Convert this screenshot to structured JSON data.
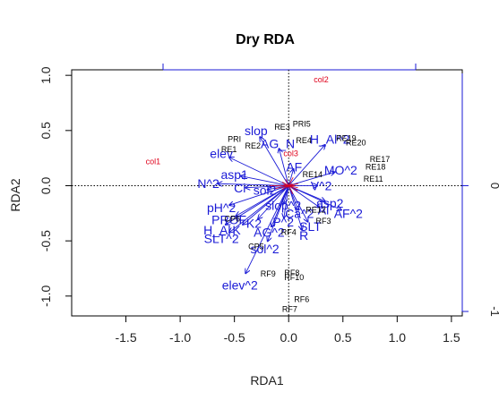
{
  "chart_data": {
    "type": "scatter",
    "title": "Dry RDA",
    "xlabel": "RDA1",
    "ylabel": "RDA2",
    "xlim": [
      -2.0,
      1.6
    ],
    "ylim": [
      -1.18,
      1.05
    ],
    "x_ticks": [
      -1.5,
      -1.0,
      -0.5,
      0.0,
      0.5,
      1.0,
      1.5
    ],
    "y_ticks": [
      1.0,
      0.5,
      0.0,
      -0.5,
      -1.0
    ],
    "x_tick_labels": [
      "-1.5",
      "-1.0",
      "-0.5",
      "0.0",
      "0.5",
      "1.0",
      "1.5"
    ],
    "y_tick_labels": [
      "1.0",
      "0.5",
      "0.0",
      "-0.5",
      "-1.0"
    ],
    "right_axis_tick_labels": [
      "0",
      "-1"
    ],
    "grid": false,
    "colors": {
      "sites": "#000000",
      "species": "#e0001b",
      "biplot": "#1a1ad6",
      "axes": "#000000"
    },
    "sites": [
      {
        "label": "PRI5",
        "x": 0.12,
        "y": 0.56
      },
      {
        "label": "RE3",
        "x": -0.06,
        "y": 0.53
      },
      {
        "label": "PRI",
        "x": -0.5,
        "y": 0.42
      },
      {
        "label": "RE2",
        "x": -0.33,
        "y": 0.36
      },
      {
        "label": "RE4",
        "x": 0.14,
        "y": 0.41
      },
      {
        "label": "RE1",
        "x": -0.55,
        "y": 0.33
      },
      {
        "label": "RE19",
        "x": 0.53,
        "y": 0.43
      },
      {
        "label": "RE20",
        "x": 0.62,
        "y": 0.39
      },
      {
        "label": "RE17",
        "x": 0.84,
        "y": 0.24
      },
      {
        "label": "RE18",
        "x": 0.8,
        "y": 0.17
      },
      {
        "label": "RE11",
        "x": 0.78,
        "y": 0.06
      },
      {
        "label": "RE14",
        "x": 0.22,
        "y": 0.1
      },
      {
        "label": "RE12",
        "x": 0.25,
        "y": -0.22
      },
      {
        "label": "RF3",
        "x": 0.32,
        "y": -0.32
      },
      {
        "label": "RF4",
        "x": 0.0,
        "y": -0.42
      },
      {
        "label": "CP6",
        "x": -0.52,
        "y": -0.3
      },
      {
        "label": "CP5",
        "x": -0.3,
        "y": -0.55
      },
      {
        "label": "RF9",
        "x": -0.19,
        "y": -0.8
      },
      {
        "label": "RF8",
        "x": 0.03,
        "y": -0.79
      },
      {
        "label": "RF10",
        "x": 0.05,
        "y": -0.83
      },
      {
        "label": "RF6",
        "x": 0.12,
        "y": -1.03
      },
      {
        "label": "RF7",
        "x": 0.01,
        "y": -1.12
      }
    ],
    "species": [
      {
        "label": "col2",
        "x": 0.3,
        "y": 0.96
      },
      {
        "label": "col1",
        "x": -1.25,
        "y": 0.22
      },
      {
        "label": "col3",
        "x": 0.02,
        "y": 0.29
      }
    ],
    "biplot": [
      {
        "label": "slop",
        "x": -0.3,
        "y": 0.5
      },
      {
        "label": "AG_N",
        "x": -0.1,
        "y": 0.38
      },
      {
        "label": "H_Al^2",
        "x": 0.38,
        "y": 0.42
      },
      {
        "label": "AF",
        "x": 0.05,
        "y": 0.17
      },
      {
        "label": "MO^2",
        "x": 0.48,
        "y": 0.14
      },
      {
        "label": "elev",
        "x": -0.62,
        "y": 0.29
      },
      {
        "label": "asp1",
        "x": -0.5,
        "y": 0.1
      },
      {
        "label": "N^2",
        "x": -0.74,
        "y": 0.02
      },
      {
        "label": "Ci",
        "x": -0.45,
        "y": -0.02
      },
      {
        "label": "sol2",
        "x": -0.22,
        "y": -0.04
      },
      {
        "label": "V^2",
        "x": 0.3,
        "y": 0.0
      },
      {
        "label": "slop^2",
        "x": -0.05,
        "y": -0.18
      },
      {
        "label": "asp2",
        "x": 0.38,
        "y": -0.16
      },
      {
        "label": "pH^2",
        "x": -0.62,
        "y": -0.2
      },
      {
        "label": "Al",
        "x": 0.32,
        "y": -0.22
      },
      {
        "label": "Ca^2",
        "x": 0.1,
        "y": -0.25
      },
      {
        "label": "AF^2",
        "x": 0.55,
        "y": -0.25
      },
      {
        "label": "PROF",
        "x": -0.55,
        "y": -0.31
      },
      {
        "label": "K2",
        "x": -0.32,
        "y": -0.34
      },
      {
        "label": "P^2",
        "x": -0.05,
        "y": -0.33
      },
      {
        "label": "SLT",
        "x": 0.2,
        "y": -0.37
      },
      {
        "label": "H_Al",
        "x": -0.66,
        "y": -0.4
      },
      {
        "label": "K",
        "x": -0.48,
        "y": -0.4
      },
      {
        "label": "AG^2",
        "x": -0.18,
        "y": -0.42
      },
      {
        "label": "R",
        "x": 0.14,
        "y": -0.45
      },
      {
        "label": "SLT^2",
        "x": -0.62,
        "y": -0.48
      },
      {
        "label": "sol^2",
        "x": -0.22,
        "y": -0.57
      },
      {
        "label": "elev^2",
        "x": -0.45,
        "y": -0.9
      }
    ]
  }
}
